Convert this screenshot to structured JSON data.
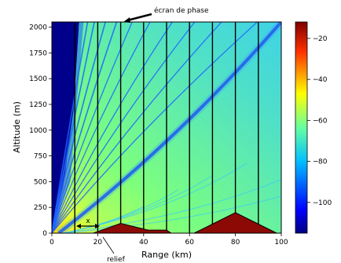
{
  "chart_data": {
    "type": "heatmap",
    "title": "",
    "xlabel": "Range (km)",
    "ylabel": "Altitude (m)",
    "xlim": [
      0,
      100
    ],
    "ylim": [
      0,
      2050
    ],
    "xticks": [
      "0",
      "20",
      "40",
      "60",
      "80",
      "100"
    ],
    "yticks": [
      "0",
      "250",
      "500",
      "750",
      "1000",
      "1250",
      "1500",
      "1750",
      "2000"
    ],
    "colorbar": {
      "range": [
        -115,
        -12
      ],
      "ticks": [
        "20",
        "40",
        "60",
        "80",
        "100"
      ],
      "tick_values": [
        -20,
        -40,
        -60,
        -80,
        -100
      ],
      "colormap": "jet_reversed"
    },
    "phase_screens_km": [
      10,
      20,
      30,
      40,
      50,
      60,
      70,
      80,
      90
    ],
    "relief": [
      {
        "start_km": 18,
        "peak_km": 30,
        "peak_m": 95,
        "end_km": 42,
        "end_m": 30
      },
      {
        "start_km": 42,
        "end_km": 50,
        "level_m": 30
      },
      {
        "start_km": 62,
        "peak_km": 80,
        "peak_m": 200,
        "end_km": 98
      }
    ],
    "annotations": {
      "phase_screen": "écran de phase",
      "relief": "relief",
      "spacing": "x"
    }
  }
}
